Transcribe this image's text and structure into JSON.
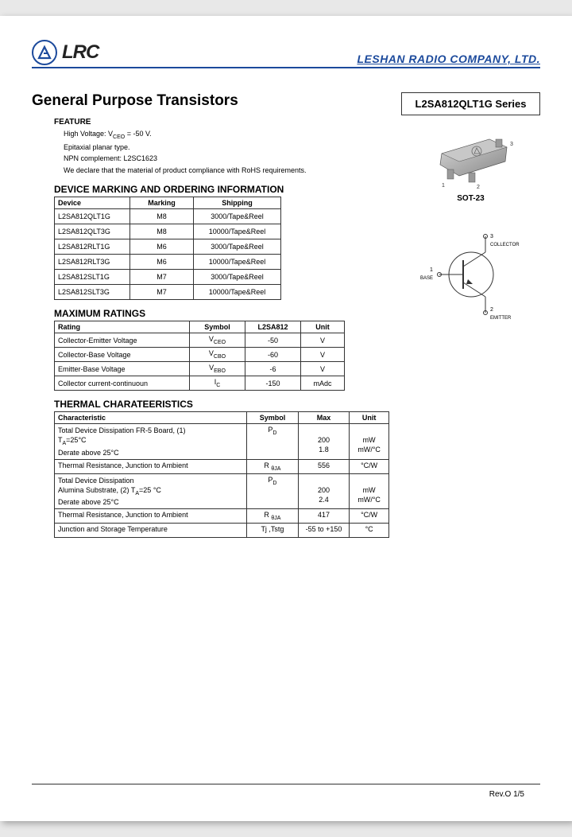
{
  "header": {
    "logo_text": "LRC",
    "company": "LESHAN RADIO COMPANY, LTD."
  },
  "title": "General Purpose Transistors",
  "feature": {
    "heading": "FEATURE",
    "lines": [
      "High Voltage: V_CEO = -50 V.",
      "Epitaxial planar type.",
      "NPN complement: L2SC1623",
      "We declare that the material of product  compliance with RoHS requirements."
    ]
  },
  "part_box": "L2SA812QLT1G Series",
  "package": {
    "label": "SOT-23",
    "pin1": "1",
    "pin2": "2",
    "pin3": "3"
  },
  "symbol": {
    "pin1": "1",
    "pin2": "2",
    "pin3": "3",
    "base": "BASE",
    "emitter": "EMITTER",
    "collector": "COLLECTOR"
  },
  "marking_table": {
    "heading": "DEVICE MARKING AND ORDERING INFORMATION",
    "headers": [
      "Device",
      "Marking",
      "Shipping"
    ],
    "rows": [
      [
        "L2SA812QLT1G",
        "M8",
        "3000/Tape&Reel"
      ],
      [
        "L2SA812QLT3G",
        "M8",
        "10000/Tape&Reel"
      ],
      [
        "L2SA812RLT1G",
        "M6",
        "3000/Tape&Reel"
      ],
      [
        "L2SA812RLT3G",
        "M6",
        "10000/Tape&Reel"
      ],
      [
        "L2SA812SLT1G",
        "M7",
        "3000/Tape&Reel"
      ],
      [
        "L2SA812SLT3G",
        "M7",
        "10000/Tape&Reel"
      ]
    ]
  },
  "max_table": {
    "heading": "MAXIMUM  RATINGS",
    "headers": [
      "Rating",
      "Symbol",
      "L2SA812",
      "Unit"
    ],
    "rows": [
      [
        "Collector-Emitter Voltage",
        "V_CEO",
        "-50",
        "V"
      ],
      [
        "Collector-Base Voltage",
        "V_CBO",
        "-60",
        "V"
      ],
      [
        "Emitter-Base Voltage",
        "V_EBO",
        "-6",
        "V"
      ],
      [
        "Collector current-continuoun",
        "I_C",
        "-150",
        "mAdc"
      ]
    ]
  },
  "thermal_table": {
    "heading": "THERMAL CHARATEERISTICS",
    "headers": [
      "Characteristic",
      "Symbol",
      "Max",
      "Unit"
    ],
    "rows": [
      {
        "c": "Total Device Dissipation FR-5 Board, (1)\nT_A=25°C\nDerate above 25°C",
        "s": "P_D",
        "m": "\n200\n1.8",
        "u": "\nmW\nmW/°C"
      },
      {
        "c": "Thermal Resistance, Junction to Ambient",
        "s": "R_θJA",
        "m": "556",
        "u": "°C/W"
      },
      {
        "c": "Total Device Dissipation\nAlumina Substrate, (2) T_A=25 °C\nDerate above 25°C",
        "s": "P_D",
        "m": "\n200\n2.4",
        "u": "\nmW\nmW/°C"
      },
      {
        "c": "Thermal Resistance, Junction to Ambient",
        "s": "R_θJA",
        "m": "417",
        "u": "°C/W"
      },
      {
        "c": "Junction and Storage Temperature",
        "s": "Tj ,Tstg",
        "m": "-55 to +150",
        "u": "°C"
      }
    ]
  },
  "footer": {
    "rev": "Rev.O  1/5"
  },
  "colors": {
    "brand_blue": "#1c4a9c",
    "text": "#222222",
    "border": "#333333"
  }
}
